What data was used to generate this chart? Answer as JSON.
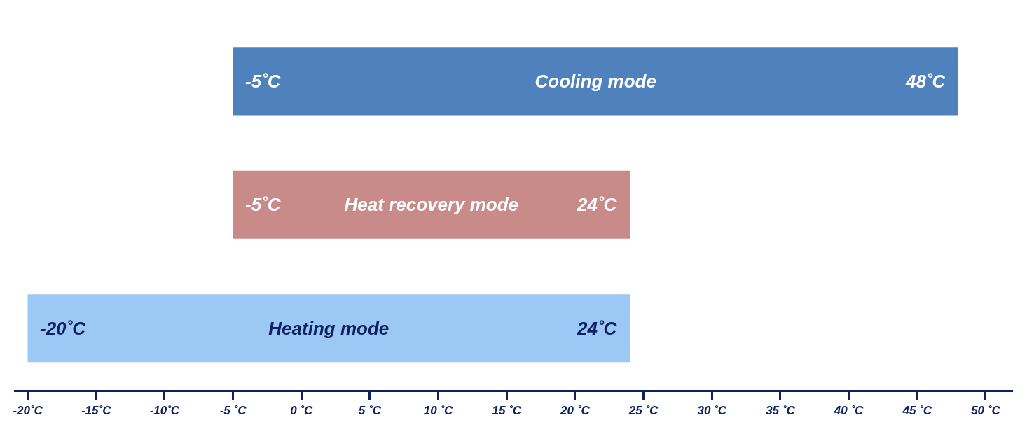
{
  "chart_data": {
    "type": "bar",
    "orientation": "horizontal",
    "categories": [
      "Cooling mode",
      "Heat recovery mode",
      "Heating mode"
    ],
    "base": [
      -5,
      -5,
      -20
    ],
    "values": [
      53,
      29,
      44
    ],
    "colors": [
      "#4f81bd",
      "#c98a8a",
      "#9cc8f5"
    ],
    "xlim": [
      -21,
      52
    ],
    "xticks": [
      {
        "value": -20,
        "label": "-20˚C"
      },
      {
        "value": -15,
        "label": "-15˚C"
      },
      {
        "value": -10,
        "label": "-10˚C"
      },
      {
        "value": -5,
        "label": "-5 ˚C"
      },
      {
        "value": 0,
        "label": "0 ˚C"
      },
      {
        "value": 5,
        "label": "5 ˚C"
      },
      {
        "value": 10,
        "label": "10 ˚C"
      },
      {
        "value": 15,
        "label": "15 ˚C"
      },
      {
        "value": 20,
        "label": "20 ˚C"
      },
      {
        "value": 25,
        "label": "25 ˚C"
      },
      {
        "value": 30,
        "label": "30 ˚C"
      },
      {
        "value": 35,
        "label": "35 ˚C"
      },
      {
        "value": 40,
        "label": "40 ˚C"
      },
      {
        "value": 45,
        "label": "45 ˚C"
      },
      {
        "value": 50,
        "label": "50 ˚C"
      }
    ],
    "tick_labels": "x",
    "annotations": [
      {
        "text": "-5˚C",
        "x": -5,
        "y": "Cooling mode"
      },
      {
        "text": "48˚C",
        "x": 48,
        "y": "Cooling mode"
      },
      {
        "text": "-5˚C",
        "x": -5,
        "y": "Heat recovery mode"
      },
      {
        "text": "24˚C",
        "x": 24,
        "y": "Heat recovery mode"
      },
      {
        "text": "-20˚C",
        "x": -20,
        "y": "Heating mode"
      },
      {
        "text": "24˚C",
        "x": 24,
        "y": "Heating mode"
      }
    ]
  }
}
